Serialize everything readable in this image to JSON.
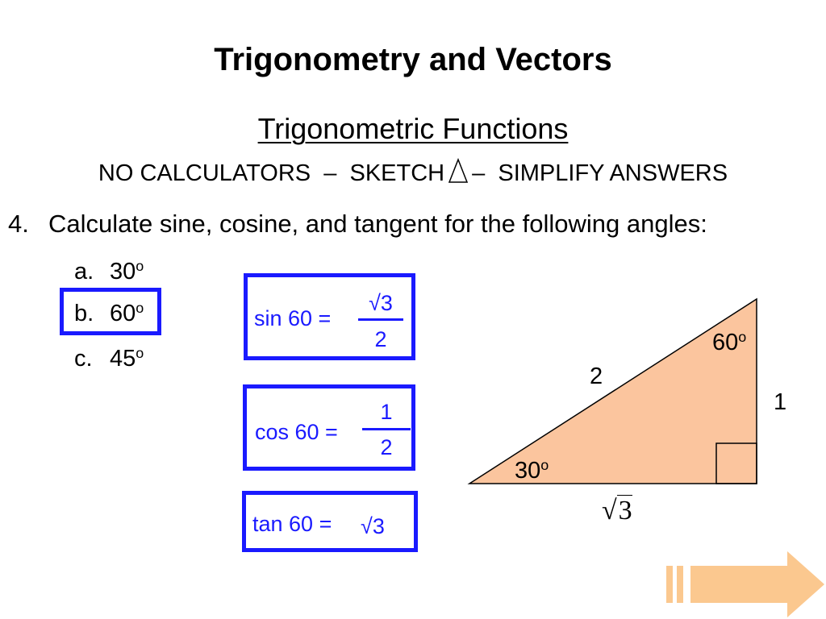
{
  "slide": {
    "title": "Trigonometry and Vectors",
    "subtitle": "Trigonometric Functions",
    "instructions": {
      "part1": "NO CALCULATORS  –  SKETCH",
      "part2": "–  SIMPLIFY ANSWERS",
      "sketch_icon": "triangle-outline-icon"
    },
    "question": {
      "number": "4.",
      "text": "Calculate sine, cosine, and tangent for the following angles:",
      "options": [
        {
          "letter": "a.",
          "value": "30",
          "unit": "o"
        },
        {
          "letter": "b.",
          "value": "60",
          "unit": "o",
          "highlighted": true
        },
        {
          "letter": "c.",
          "value": "45",
          "unit": "o"
        }
      ]
    },
    "answers": {
      "sin": {
        "label": "sin 60 =",
        "numerator": "√3",
        "denominator": "2"
      },
      "cos": {
        "label": "cos 60 =",
        "numerator": "1",
        "denominator": "2"
      },
      "tan": {
        "label": "tan 60 =",
        "value": "√3"
      }
    },
    "triangle": {
      "hypotenuse": "2",
      "opposite": "1",
      "adjacent_symbol": "√",
      "adjacent_value": "3",
      "angle_top": {
        "value": "60",
        "unit": "o"
      },
      "angle_bottom": {
        "value": "30",
        "unit": "o"
      },
      "fill_color": "#fbc59e",
      "right_angle_marker": true
    },
    "nav": {
      "icon": "forward-arrow-icon"
    },
    "colors": {
      "accent_blue": "#1a1aff",
      "arrow_orange": "#fbc88f"
    }
  }
}
